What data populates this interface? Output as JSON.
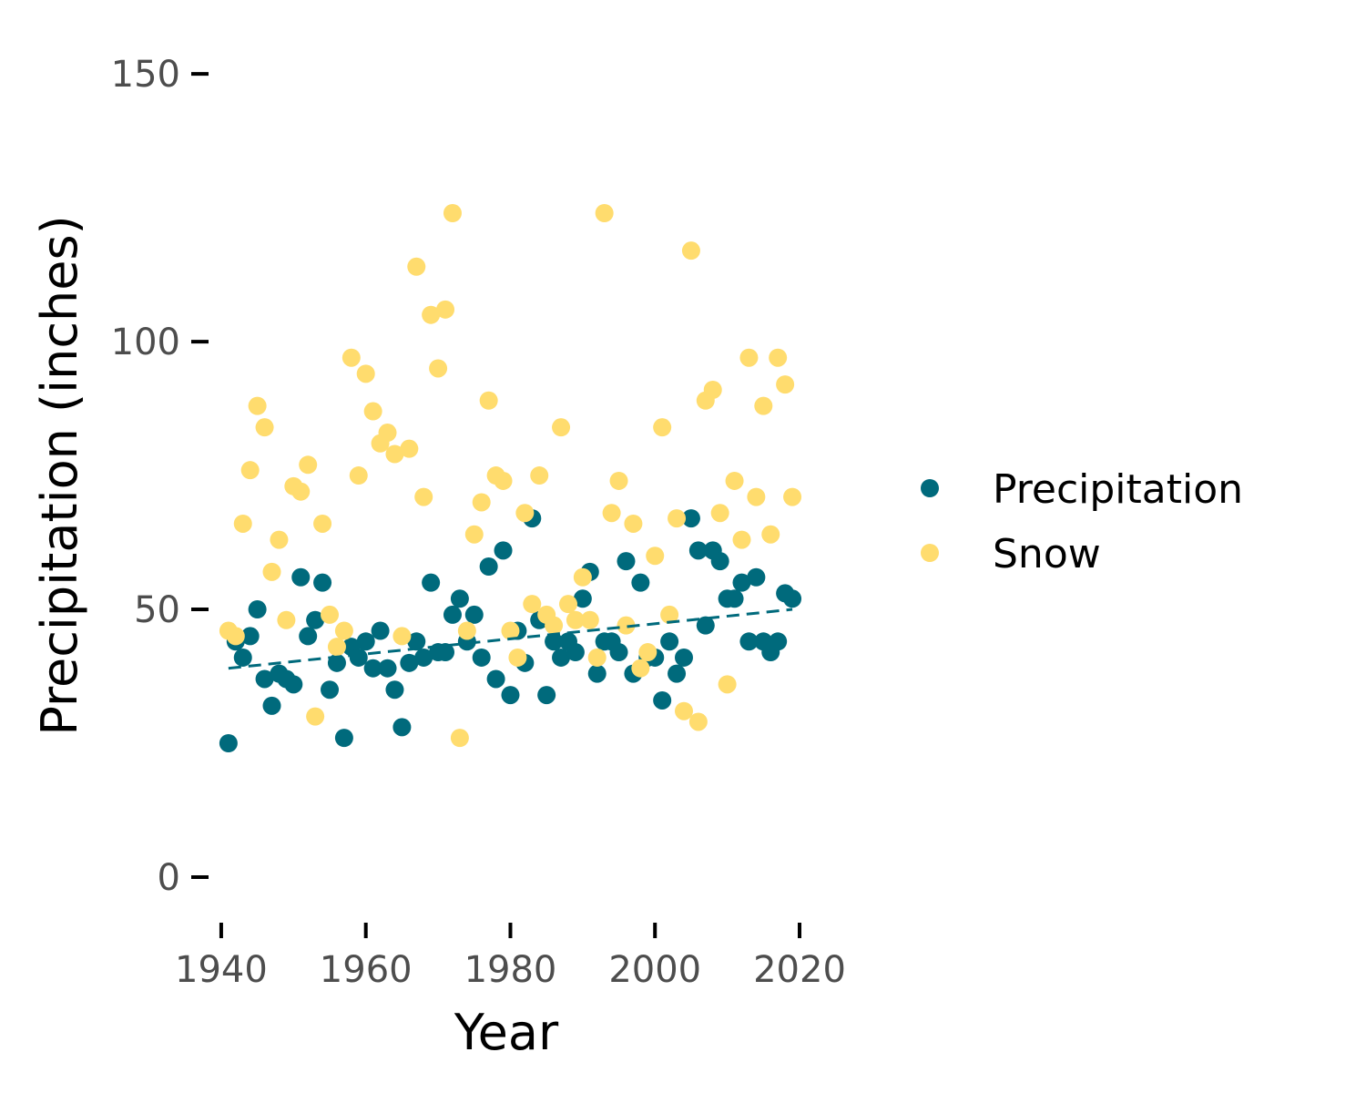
{
  "chart_data": {
    "type": "scatter",
    "xlabel": "Year",
    "ylabel": "Precipitation (inches)",
    "xlim": [
      1939,
      2020
    ],
    "ylim": [
      -8,
      157
    ],
    "x_ticks": [
      1940,
      1960,
      1980,
      2000,
      2020
    ],
    "y_ticks": [
      0,
      50,
      100,
      150
    ],
    "grid": false,
    "legend_position": "right",
    "series": [
      {
        "name": "Precipitation",
        "color": "#006a7c",
        "points": [
          [
            1941,
            25
          ],
          [
            1942,
            44
          ],
          [
            1943,
            41
          ],
          [
            1944,
            45
          ],
          [
            1945,
            50
          ],
          [
            1946,
            37
          ],
          [
            1947,
            32
          ],
          [
            1948,
            38
          ],
          [
            1949,
            37
          ],
          [
            1950,
            36
          ],
          [
            1951,
            56
          ],
          [
            1952,
            45
          ],
          [
            1953,
            48
          ],
          [
            1954,
            55
          ],
          [
            1955,
            35
          ],
          [
            1956,
            40
          ],
          [
            1957,
            26
          ],
          [
            1958,
            43
          ],
          [
            1959,
            41
          ],
          [
            1960,
            44
          ],
          [
            1961,
            39
          ],
          [
            1962,
            46
          ],
          [
            1963,
            39
          ],
          [
            1964,
            35
          ],
          [
            1965,
            28
          ],
          [
            1966,
            40
          ],
          [
            1967,
            44
          ],
          [
            1968,
            41
          ],
          [
            1969,
            55
          ],
          [
            1970,
            42
          ],
          [
            1971,
            42
          ],
          [
            1972,
            49
          ],
          [
            1973,
            52
          ],
          [
            1974,
            44
          ],
          [
            1975,
            49
          ],
          [
            1976,
            41
          ],
          [
            1977,
            58
          ],
          [
            1978,
            37
          ],
          [
            1979,
            61
          ],
          [
            1980,
            34
          ],
          [
            1981,
            46
          ],
          [
            1982,
            40
          ],
          [
            1983,
            67
          ],
          [
            1984,
            48
          ],
          [
            1985,
            34
          ],
          [
            1986,
            44
          ],
          [
            1987,
            41
          ],
          [
            1988,
            44
          ],
          [
            1989,
            42
          ],
          [
            1990,
            52
          ],
          [
            1991,
            57
          ],
          [
            1992,
            38
          ],
          [
            1993,
            44
          ],
          [
            1994,
            44
          ],
          [
            1995,
            42
          ],
          [
            1996,
            59
          ],
          [
            1997,
            38
          ],
          [
            1998,
            55
          ],
          [
            1999,
            41
          ],
          [
            2000,
            41
          ],
          [
            2001,
            33
          ],
          [
            2002,
            44
          ],
          [
            2003,
            38
          ],
          [
            2004,
            41
          ],
          [
            2005,
            67
          ],
          [
            2006,
            61
          ],
          [
            2007,
            47
          ],
          [
            2008,
            61
          ],
          [
            2009,
            59
          ],
          [
            2010,
            52
          ],
          [
            2011,
            52
          ],
          [
            2012,
            55
          ],
          [
            2013,
            44
          ],
          [
            2014,
            56
          ],
          [
            2015,
            44
          ],
          [
            2016,
            42
          ],
          [
            2017,
            44
          ],
          [
            2018,
            53
          ],
          [
            2019,
            52
          ]
        ],
        "trend": {
          "style": "dashed",
          "x": [
            1941,
            2019
          ],
          "y": [
            39,
            50
          ]
        }
      },
      {
        "name": "Snow",
        "color": "#ffdc6e",
        "points": [
          [
            1941,
            46
          ],
          [
            1942,
            45
          ],
          [
            1943,
            66
          ],
          [
            1944,
            76
          ],
          [
            1945,
            88
          ],
          [
            1946,
            84
          ],
          [
            1947,
            57
          ],
          [
            1948,
            63
          ],
          [
            1949,
            48
          ],
          [
            1950,
            73
          ],
          [
            1951,
            72
          ],
          [
            1952,
            77
          ],
          [
            1953,
            30
          ],
          [
            1954,
            66
          ],
          [
            1955,
            49
          ],
          [
            1956,
            43
          ],
          [
            1957,
            46
          ],
          [
            1958,
            97
          ],
          [
            1959,
            75
          ],
          [
            1960,
            94
          ],
          [
            1961,
            87
          ],
          [
            1962,
            81
          ],
          [
            1963,
            83
          ],
          [
            1964,
            79
          ],
          [
            1965,
            45
          ],
          [
            1966,
            80
          ],
          [
            1967,
            114
          ],
          [
            1968,
            71
          ],
          [
            1969,
            105
          ],
          [
            1970,
            95
          ],
          [
            1971,
            106
          ],
          [
            1972,
            124
          ],
          [
            1973,
            26
          ],
          [
            1974,
            46
          ],
          [
            1975,
            64
          ],
          [
            1976,
            70
          ],
          [
            1977,
            89
          ],
          [
            1978,
            75
          ],
          [
            1979,
            74
          ],
          [
            1980,
            46
          ],
          [
            1981,
            41
          ],
          [
            1982,
            68
          ],
          [
            1983,
            51
          ],
          [
            1984,
            75
          ],
          [
            1985,
            49
          ],
          [
            1986,
            47
          ],
          [
            1987,
            84
          ],
          [
            1988,
            51
          ],
          [
            1989,
            48
          ],
          [
            1990,
            56
          ],
          [
            1991,
            48
          ],
          [
            1992,
            41
          ],
          [
            1993,
            124
          ],
          [
            1994,
            68
          ],
          [
            1995,
            74
          ],
          [
            1996,
            47
          ],
          [
            1997,
            66
          ],
          [
            1998,
            39
          ],
          [
            1999,
            42
          ],
          [
            2000,
            60
          ],
          [
            2001,
            84
          ],
          [
            2002,
            49
          ],
          [
            2003,
            67
          ],
          [
            2004,
            31
          ],
          [
            2005,
            117
          ],
          [
            2006,
            29
          ],
          [
            2007,
            89
          ],
          [
            2008,
            91
          ],
          [
            2009,
            68
          ],
          [
            2010,
            36
          ],
          [
            2011,
            74
          ],
          [
            2012,
            63
          ],
          [
            2013,
            97
          ],
          [
            2014,
            71
          ],
          [
            2015,
            88
          ],
          [
            2016,
            64
          ],
          [
            2017,
            97
          ],
          [
            2018,
            92
          ],
          [
            2019,
            71
          ]
        ]
      }
    ]
  }
}
